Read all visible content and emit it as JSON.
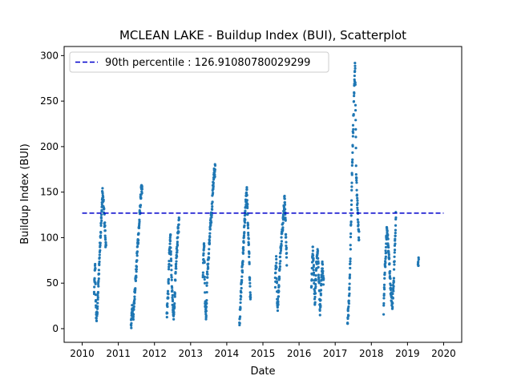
{
  "chart_data": {
    "type": "scatter",
    "title": "MCLEAN LAKE - Buildup Index (BUI), Scatterplot",
    "xlabel": "Date",
    "ylabel": "Buildup Index (BUI)",
    "xlim": [
      2009.5,
      2020.5
    ],
    "ylim": [
      -15,
      310
    ],
    "xticks": [
      2010,
      2011,
      2012,
      2013,
      2014,
      2015,
      2016,
      2017,
      2018,
      2019,
      2020
    ],
    "yticks": [
      0,
      50,
      100,
      150,
      200,
      250,
      300
    ],
    "grid": false,
    "legend_position": "top-left",
    "reference_line": {
      "label": "90th percentile : 126.91080780029299",
      "value": 126.91080780029299,
      "x_range": [
        2010.0,
        2020.0
      ],
      "color": "#0000cc",
      "style": "dashed"
    },
    "series": [
      {
        "color": "#1f77b4",
        "marker_size_px": 1.6,
        "seasons": [
          {
            "year": 2010,
            "x_start": 2010.33,
            "x_end": 2010.66,
            "path": [
              [
                2010.33,
                38
              ],
              [
                2010.36,
                70
              ],
              [
                2010.38,
                20
              ],
              [
                2010.4,
                10
              ],
              [
                2010.43,
                30
              ],
              [
                2010.46,
                60
              ],
              [
                2010.49,
                90
              ],
              [
                2010.53,
                120
              ],
              [
                2010.56,
                150
              ],
              [
                2010.6,
                130
              ],
              [
                2010.63,
                110
              ],
              [
                2010.66,
                85
              ]
            ]
          },
          {
            "year": 2011,
            "x_start": 2011.35,
            "x_end": 2011.66,
            "path": [
              [
                2011.35,
                3
              ],
              [
                2011.38,
                20
              ],
              [
                2011.42,
                15
              ],
              [
                2011.46,
                45
              ],
              [
                2011.5,
                65
              ],
              [
                2011.53,
                90
              ],
              [
                2011.57,
                110
              ],
              [
                2011.6,
                130
              ],
              [
                2011.63,
                150
              ],
              [
                2011.66,
                152
              ]
            ]
          },
          {
            "year": 2012,
            "x_start": 2012.34,
            "x_end": 2012.68,
            "path": [
              [
                2012.34,
                15
              ],
              [
                2012.38,
                40
              ],
              [
                2012.41,
                80
              ],
              [
                2012.44,
                105
              ],
              [
                2012.47,
                60
              ],
              [
                2012.5,
                30
              ],
              [
                2012.53,
                10
              ],
              [
                2012.57,
                45
              ],
              [
                2012.61,
                80
              ],
              [
                2012.65,
                105
              ],
              [
                2012.68,
                118
              ]
            ]
          },
          {
            "year": 2013,
            "x_start": 2013.34,
            "x_end": 2013.68,
            "path": [
              [
                2013.34,
                60
              ],
              [
                2013.37,
                100
              ],
              [
                2013.4,
                30
              ],
              [
                2013.43,
                15
              ],
              [
                2013.46,
                60
              ],
              [
                2013.5,
                80
              ],
              [
                2013.54,
                110
              ],
              [
                2013.58,
                125
              ],
              [
                2013.61,
                150
              ],
              [
                2013.65,
                170
              ],
              [
                2013.68,
                175
              ]
            ]
          },
          {
            "year": 2014,
            "x_start": 2014.35,
            "x_end": 2014.66,
            "path": [
              [
                2014.35,
                2
              ],
              [
                2014.38,
                30
              ],
              [
                2014.41,
                55
              ],
              [
                2014.44,
                70
              ],
              [
                2014.47,
                100
              ],
              [
                2014.5,
                120
              ],
              [
                2014.53,
                140
              ],
              [
                2014.56,
                150
              ],
              [
                2014.59,
                110
              ],
              [
                2014.62,
                80
              ],
              [
                2014.64,
                45
              ],
              [
                2014.66,
                28
              ]
            ]
          },
          {
            "year": 2015,
            "x_start": 2015.34,
            "x_end": 2015.66,
            "path": [
              [
                2015.34,
                50
              ],
              [
                2015.37,
                75
              ],
              [
                2015.4,
                20
              ],
              [
                2015.43,
                35
              ],
              [
                2015.46,
                65
              ],
              [
                2015.5,
                90
              ],
              [
                2015.54,
                110
              ],
              [
                2015.57,
                125
              ],
              [
                2015.6,
                142
              ],
              [
                2015.63,
                110
              ],
              [
                2015.66,
                75
              ]
            ]
          },
          {
            "year": 2016,
            "x_start": 2016.34,
            "x_end": 2016.68,
            "path": [
              [
                2016.34,
                45
              ],
              [
                2016.38,
                90
              ],
              [
                2016.41,
                60
              ],
              [
                2016.44,
                30
              ],
              [
                2016.48,
                70
              ],
              [
                2016.52,
                85
              ],
              [
                2016.55,
                55
              ],
              [
                2016.58,
                20
              ],
              [
                2016.61,
                45
              ],
              [
                2016.64,
                70
              ],
              [
                2016.68,
                50
              ]
            ]
          },
          {
            "year": 2017,
            "x_start": 2017.34,
            "x_end": 2017.66,
            "path": [
              [
                2017.34,
                10
              ],
              [
                2017.37,
                20
              ],
              [
                2017.4,
                50
              ],
              [
                2017.43,
                100
              ],
              [
                2017.46,
                160
              ],
              [
                2017.49,
                213
              ],
              [
                2017.52,
                250
              ],
              [
                2017.55,
                295
              ],
              [
                2017.58,
                170
              ],
              [
                2017.61,
                140
              ],
              [
                2017.63,
                120
              ],
              [
                2017.66,
                100
              ]
            ]
          },
          {
            "year": 2018,
            "x_start": 2018.34,
            "x_end": 2018.68,
            "path": [
              [
                2018.34,
                20
              ],
              [
                2018.37,
                60
              ],
              [
                2018.4,
                85
              ],
              [
                2018.43,
                110
              ],
              [
                2018.46,
                95
              ],
              [
                2018.5,
                70
              ],
              [
                2018.54,
                40
              ],
              [
                2018.58,
                25
              ],
              [
                2018.62,
                55
              ],
              [
                2018.65,
                90
              ],
              [
                2018.68,
                125
              ]
            ]
          },
          {
            "year": 2019,
            "x_start": 2019.29,
            "x_end": 2019.31,
            "path": [
              [
                2019.29,
                64
              ],
              [
                2019.3,
                70
              ],
              [
                2019.31,
                77
              ]
            ]
          }
        ]
      }
    ]
  }
}
